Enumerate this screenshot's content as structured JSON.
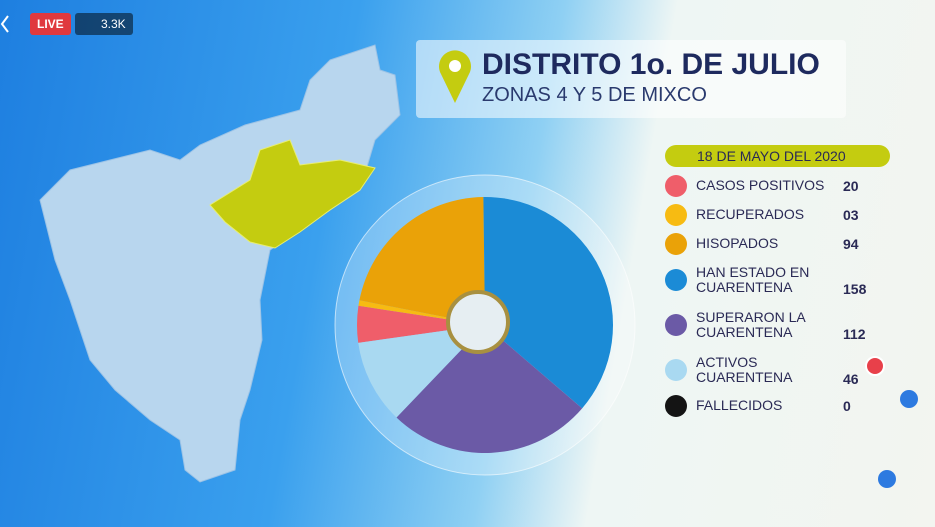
{
  "stream": {
    "live": "LIVE",
    "viewers": "3.3K"
  },
  "chart_data": {
    "type": "pie",
    "title": "DISTRITO 1o. DE JULIO",
    "subtitle": "ZONAS 4 Y 5 DE MIXCO",
    "date": "18 DE MAYO DEL 2020",
    "categories": [
      "CASOS POSITIVOS",
      "RECUPERADOS",
      "HISOPADOS",
      "HAN ESTADO EN CUARENTENA",
      "SUPERARON LA CUARENTENA",
      "ACTIVOS CUARENTENA",
      "FALLECIDOS"
    ],
    "values": [
      20,
      3,
      94,
      158,
      112,
      46,
      0
    ],
    "value_labels": [
      "20",
      "03",
      "94",
      "158",
      "112",
      "46",
      "0"
    ],
    "colors": [
      "#ef5e6a",
      "#f7bb12",
      "#eaa208",
      "#1b8bd6",
      "#6b5aa6",
      "#a9d9f1",
      "#141414"
    ]
  }
}
